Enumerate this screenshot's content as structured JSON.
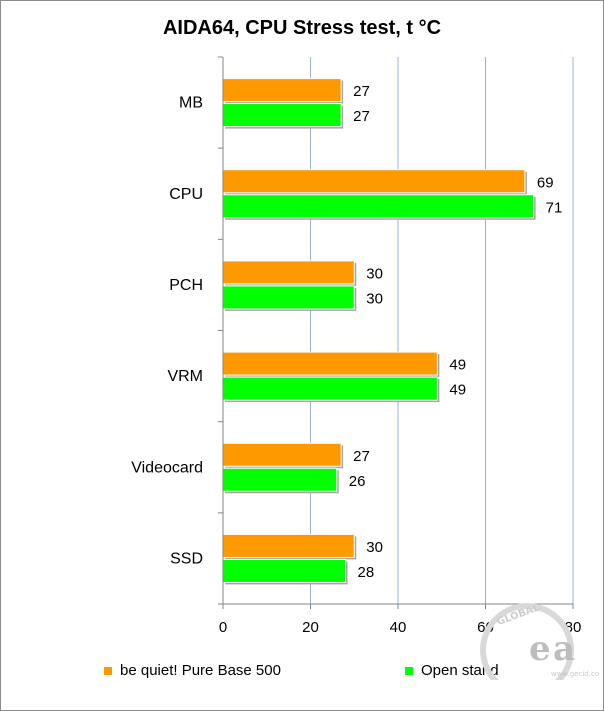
{
  "chart_data": {
    "type": "bar",
    "orientation": "horizontal",
    "title": "AIDA64, CPU Stress test, t °C",
    "categories": [
      "MB",
      "CPU",
      "PCH",
      "VRM",
      "Videocard",
      "SSD"
    ],
    "series": [
      {
        "name": "be quiet! Pure Base 500",
        "values": [
          27,
          69,
          30,
          49,
          27,
          30
        ],
        "color": "#ff9900"
      },
      {
        "name": "Open stand",
        "values": [
          27,
          71,
          30,
          49,
          26,
          28
        ],
        "color": "#00ff00"
      }
    ],
    "xlim": [
      0,
      80
    ],
    "xticks": [
      "0",
      "20",
      "40",
      "60",
      "80"
    ],
    "grid": true,
    "legend_position": "bottom"
  },
  "watermark": {
    "text": "GLOBAL",
    "site": "www.gecid.com"
  }
}
